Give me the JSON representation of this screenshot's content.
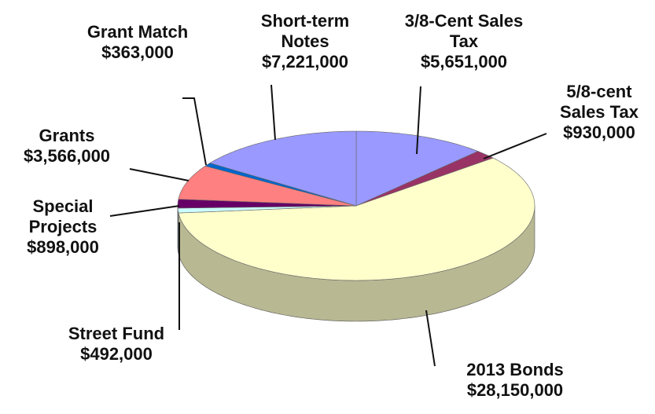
{
  "chart_data": {
    "type": "pie3d",
    "series": [
      {
        "categories": [
          "3/8-Cent Sales Tax",
          "5/8-cent Sales Tax",
          "2013 Bonds",
          "Street Fund",
          "Special Projects",
          "Grants",
          "Grant Match",
          "Short-term Notes"
        ],
        "values": [
          5651000,
          930000,
          28150000,
          492000,
          898000,
          3566000,
          363000,
          7221000
        ],
        "value_labels": [
          "$5,651,000",
          "$930,000",
          "$28,150,000",
          "$492,000",
          "$898,000",
          "$3,566,000",
          "$363,000",
          "$7,221,000"
        ],
        "colors": [
          "#9999ff",
          "#993366",
          "#ffffcc",
          "#ccffff",
          "#660066",
          "#ff8080",
          "#0066cc",
          "#9999ff"
        ]
      }
    ]
  }
}
